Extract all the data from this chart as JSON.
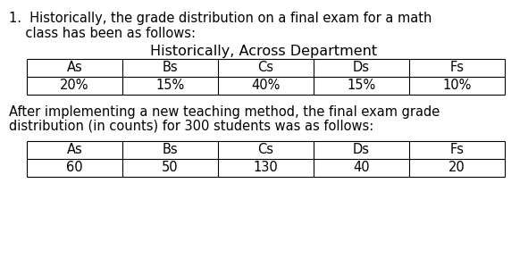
{
  "intro_text_line1": "1.  Historically, the grade distribution on a final exam for a math",
  "intro_text_line2": "    class has been as follows:",
  "table1_title": "Historically, Across Department",
  "table1_headers": [
    "As",
    "Bs",
    "Cs",
    "Ds",
    "Fs"
  ],
  "table1_values": [
    "20%",
    "15%",
    "40%",
    "15%",
    "10%"
  ],
  "middle_text_line1": "After implementing a new teaching method, the final exam grade",
  "middle_text_line2": "distribution (in counts) for 300 students was as follows:",
  "table2_headers": [
    "As",
    "Bs",
    "Cs",
    "Ds",
    "Fs"
  ],
  "table2_values": [
    "60",
    "50",
    "130",
    "40",
    "20"
  ],
  "bg_color": "#ffffff",
  "text_color": "#000000",
  "font_size_text": 10.5,
  "font_size_table": 10.5,
  "font_size_title": 11.5
}
